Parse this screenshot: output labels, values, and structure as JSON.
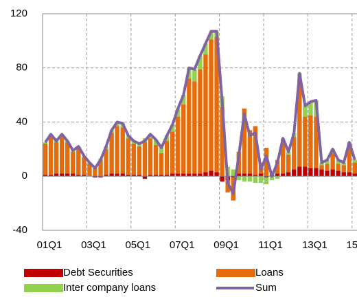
{
  "chart_data": {
    "type": "stacked-bar-line",
    "categories": [
      "01Q1",
      null,
      null,
      null,
      null,
      null,
      null,
      null,
      "03Q1",
      null,
      null,
      null,
      null,
      null,
      null,
      null,
      "05Q1",
      null,
      null,
      null,
      null,
      null,
      null,
      null,
      "07Q1",
      null,
      null,
      null,
      null,
      null,
      null,
      null,
      "09Q1",
      null,
      null,
      null,
      null,
      null,
      null,
      null,
      "11Q1",
      null,
      null,
      null,
      null,
      null,
      null,
      null,
      "13Q1",
      null,
      null,
      null,
      null,
      null,
      null,
      null,
      "15Q1"
    ],
    "series": [
      {
        "name": "Debt Securities",
        "type": "bar",
        "color": "#c00000",
        "values": [
          1,
          1,
          2,
          2,
          2,
          2,
          1,
          1,
          0,
          -1,
          -1,
          1,
          2,
          2,
          2,
          1,
          1,
          1,
          -2,
          1,
          1,
          1,
          1,
          2,
          2,
          2,
          2,
          2,
          2,
          3,
          4,
          3,
          -4,
          -3,
          -1,
          2,
          2,
          2,
          1,
          2,
          -1,
          1,
          2,
          2,
          3,
          5,
          7,
          7,
          6,
          6,
          5,
          4,
          5,
          4,
          3,
          3,
          2
        ]
      },
      {
        "name": "Loans",
        "type": "bar",
        "color": "#e46c0a",
        "values": [
          23,
          28,
          23,
          27,
          23,
          16,
          20,
          13,
          9,
          6,
          12,
          19,
          30,
          35,
          34,
          27,
          23,
          21,
          25,
          27,
          22,
          16,
          25,
          31,
          42,
          51,
          70,
          68,
          77,
          87,
          97,
          100,
          51,
          -9,
          -17,
          16,
          48,
          32,
          36,
          8,
          21,
          2,
          10,
          25,
          13,
          24,
          64,
          37,
          39,
          38,
          3,
          5,
          12,
          5,
          5,
          19,
          8
        ]
      },
      {
        "name": "Inter company loans",
        "type": "bar",
        "color": "#92d050",
        "values": [
          1,
          2,
          1,
          2,
          1,
          1,
          1,
          1,
          1,
          1,
          1,
          2,
          2,
          3,
          3,
          2,
          2,
          2,
          3,
          3,
          4,
          4,
          4,
          5,
          6,
          7,
          8,
          9,
          10,
          8,
          6,
          4,
          8,
          7,
          5,
          -3,
          -4,
          -4,
          -5,
          -5,
          -5,
          -3,
          -2,
          1,
          2,
          3,
          5,
          8,
          10,
          12,
          2,
          3,
          3,
          3,
          2,
          3,
          2
        ]
      },
      {
        "name": "Sum",
        "type": "line",
        "color": "#8064a2",
        "values": [
          25,
          31,
          26,
          31,
          26,
          19,
          22,
          15,
          10,
          6,
          12,
          22,
          34,
          40,
          39,
          30,
          26,
          24,
          26,
          31,
          27,
          21,
          30,
          38,
          50,
          60,
          80,
          79,
          89,
          98,
          107,
          107,
          55,
          -5,
          -13,
          15,
          46,
          30,
          32,
          5,
          15,
          0,
          10,
          28,
          18,
          32,
          76,
          52,
          55,
          56,
          10,
          12,
          20,
          12,
          10,
          25,
          12
        ]
      }
    ],
    "ylim": [
      -40,
      120
    ],
    "yticks": [
      -40,
      0,
      40,
      80,
      120
    ],
    "grid": true
  }
}
